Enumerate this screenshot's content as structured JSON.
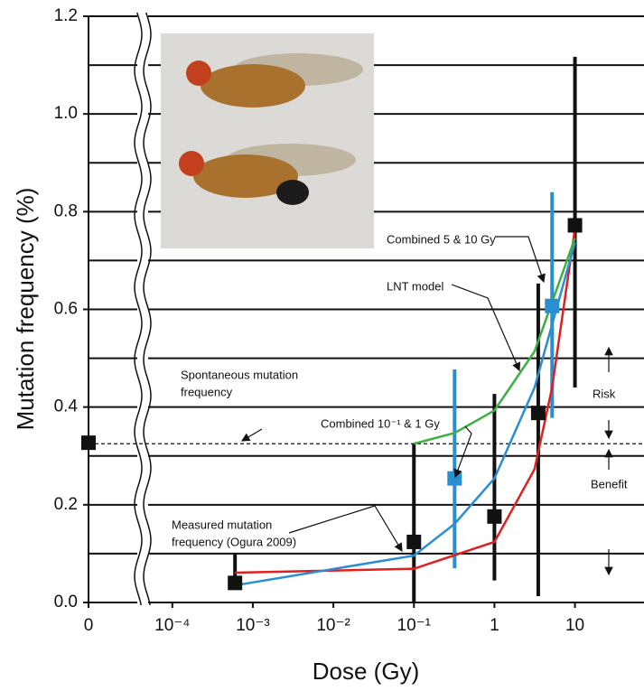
{
  "chart_data": {
    "type": "scatter",
    "y_label": "Mutation frequency (%)",
    "x_label": "Dose (Gy)",
    "xscale": "log",
    "axis_break": true,
    "xlim": [
      7e-05,
      72
    ],
    "ylim": [
      0,
      1.2
    ],
    "xticks": [
      {
        "value": 0,
        "label": "0"
      },
      {
        "value": 0.0001,
        "label": "10⁻⁴"
      },
      {
        "value": 0.001,
        "label": "10⁻³"
      },
      {
        "value": 0.01,
        "label": "10⁻²"
      },
      {
        "value": 0.1,
        "label": "10⁻¹"
      },
      1,
      10
    ],
    "yticks": [
      {
        "value": 0,
        "label": "0.0"
      },
      0.2,
      0.4,
      0.6,
      0.8,
      {
        "value": 1,
        "label": "1.0"
      },
      1.2
    ],
    "grid_values": [
      0.1,
      0.2,
      0.3,
      0.4,
      0.5,
      0.6,
      0.7,
      0.8,
      0.9,
      1.0,
      1.1
    ],
    "reference_line": 0.325,
    "series": [
      {
        "color": "#111111",
        "x": [
          0,
          0.0006,
          0.1,
          1,
          3.5,
          10
        ],
        "values": [
          0.327,
          0.04,
          0.124,
          0.176,
          0.388,
          0.772
        ],
        "lower": [
          0.327,
          0.028,
          0,
          0.045,
          0.013,
          0.44
        ],
        "upper": [
          0.327,
          0.1,
          0.325,
          0.427,
          0.653,
          1.117
        ]
      },
      {
        "color": "#2a8fd0",
        "x": [
          0.32,
          5.2
        ],
        "values": [
          0.254,
          0.607
        ],
        "lower": [
          0.07,
          0.378
        ],
        "upper": [
          0.477,
          0.84
        ]
      }
    ],
    "curves": [
      {
        "color": "#e02020",
        "x": [
          0.0006,
          0.1,
          1,
          3.15,
          5.2,
          10
        ],
        "values": [
          0.061,
          0.069,
          0.124,
          0.273,
          0.44,
          0.765
        ]
      },
      {
        "color": "#2a8fd0",
        "x": [
          0.0006,
          0.1,
          0.32,
          1,
          3.15,
          10
        ],
        "values": [
          0.035,
          0.096,
          0.161,
          0.254,
          0.44,
          0.737
        ]
      },
      {
        "color": "#3cb043",
        "x": [
          0.1,
          0.32,
          1,
          3.15,
          10
        ],
        "values": [
          0.325,
          0.347,
          0.393,
          0.514,
          0.746
        ]
      }
    ],
    "annotations": [
      {
        "lines": [
          "Combined 5 & 10 Gy"
        ]
      },
      {
        "lines": [
          "LNT model"
        ]
      },
      {
        "lines": [
          "Spontaneous mutation",
          "frequency"
        ]
      },
      {
        "lines": [
          "Combined 10⁻¹ & 1 Gy"
        ]
      },
      {
        "lines": [
          "Measured mutation",
          "frequency (Ogura 2009)"
        ]
      },
      {
        "lines": [
          "Risk"
        ]
      },
      {
        "lines": [
          "Benefit"
        ]
      }
    ]
  }
}
